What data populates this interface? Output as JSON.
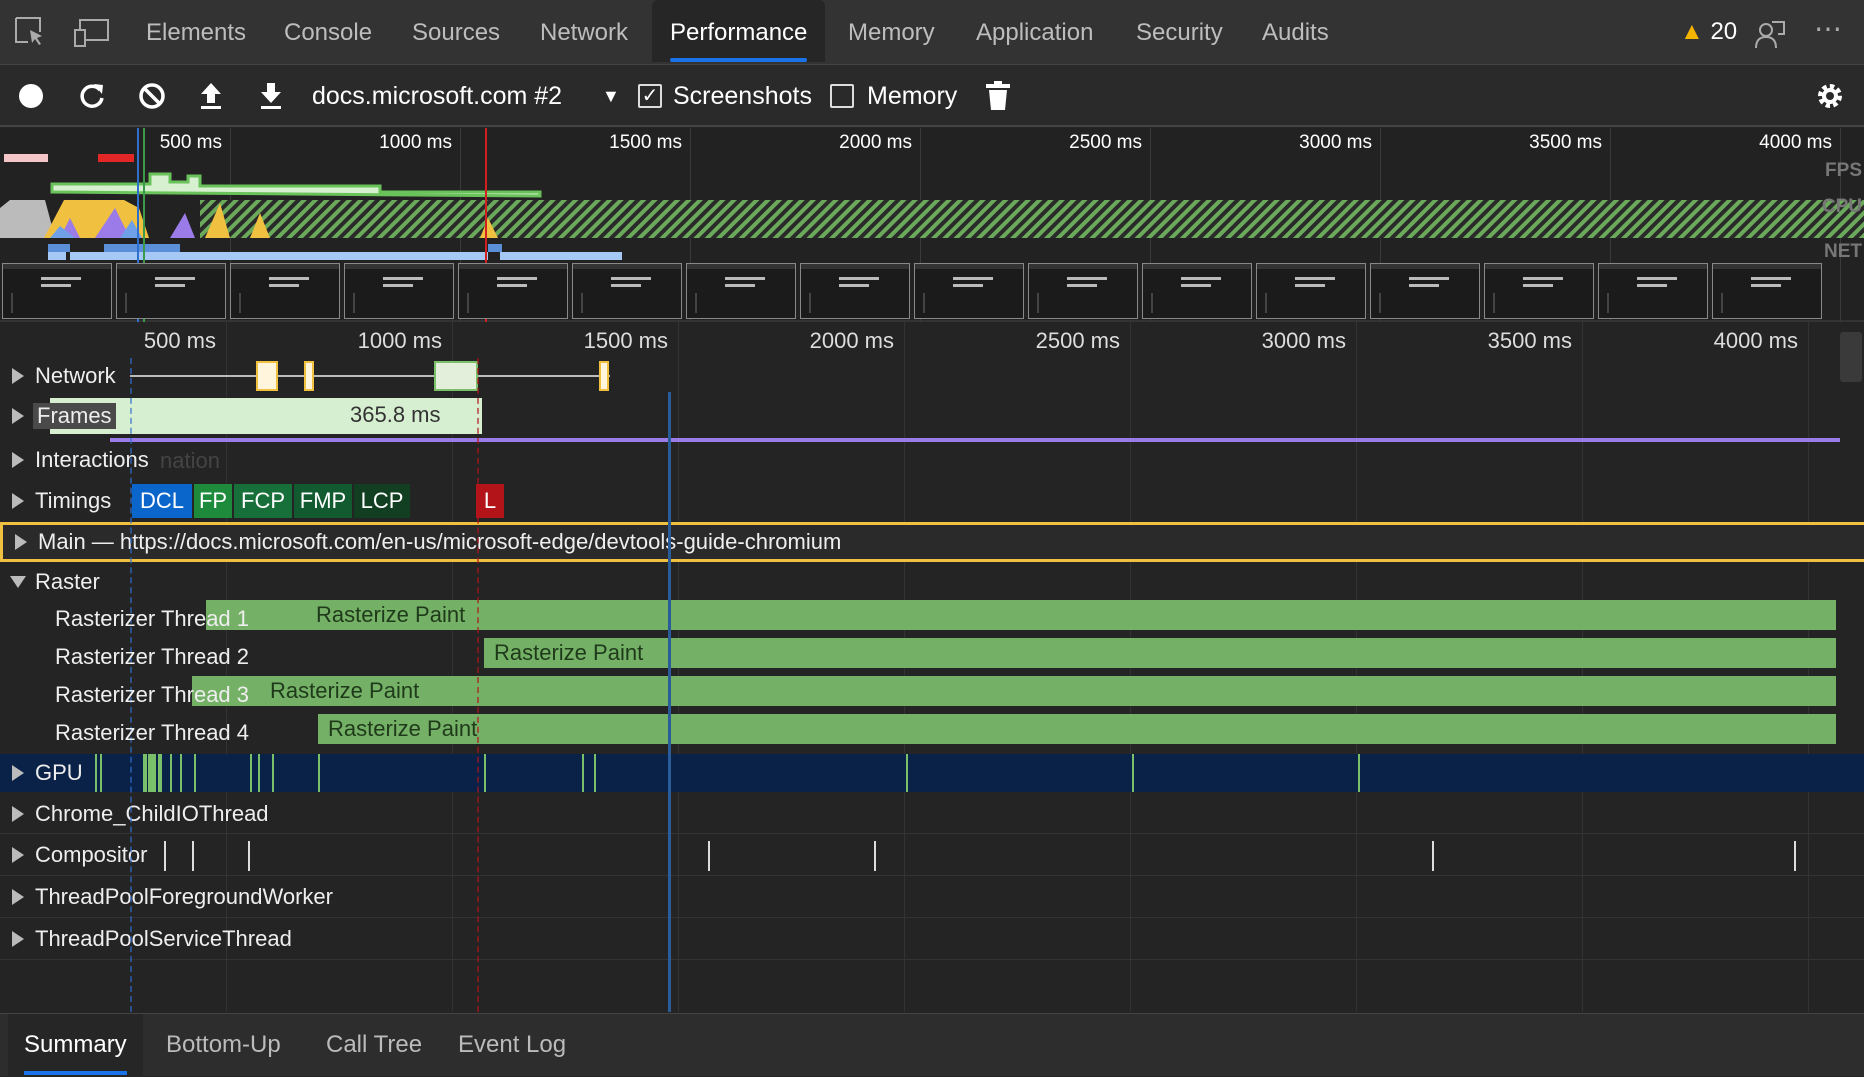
{
  "tabs": [
    "Elements",
    "Console",
    "Sources",
    "Network",
    "Performance",
    "Memory",
    "Application",
    "Security",
    "Audits"
  ],
  "active_tab": "Performance",
  "warnings": {
    "count": "20",
    "icon": "warning-icon",
    "color": "#f4b400"
  },
  "toolbar": {
    "profile_select": "docs.microsoft.com #2",
    "screenshots_label": "Screenshots",
    "screenshots_checked": true,
    "memory_label": "Memory",
    "memory_checked": false
  },
  "overview": {
    "ticks": [
      "500 ms",
      "1000 ms",
      "1500 ms",
      "2000 ms",
      "2500 ms",
      "3000 ms",
      "3500 ms",
      "4000 ms"
    ],
    "labels": {
      "fps": "FPS",
      "cpu": "CPU",
      "net": "NET"
    }
  },
  "ruler": {
    "ticks": [
      "500 ms",
      "1000 ms",
      "1500 ms",
      "2000 ms",
      "2500 ms",
      "3000 ms",
      "3500 ms",
      "4000 ms"
    ]
  },
  "tracks": {
    "network": "Network",
    "frames": "Frames",
    "frame_duration": "365.8 ms",
    "interactions": "Interactions",
    "interactions_ghost": "nation",
    "timings": "Timings",
    "timing_markers": [
      {
        "label": "DCL",
        "color": "#0b66cc"
      },
      {
        "label": "FP",
        "color": "#1e8a3c"
      },
      {
        "label": "FCP",
        "color": "#17703a"
      },
      {
        "label": "FMP",
        "color": "#125a30"
      },
      {
        "label": "LCP",
        "color": "#123f22"
      },
      {
        "label": "L",
        "color": "#b3141a"
      }
    ],
    "main": "Main — https://docs.microsoft.com/en-us/microsoft-edge/devtools-guide-chromium",
    "raster": "Raster",
    "rasterizers": [
      {
        "name": "Rasterizer Thread 1",
        "event": "Rasterize Paint"
      },
      {
        "name": "Rasterizer Thread 2",
        "event": "Rasterize Paint"
      },
      {
        "name": "Rasterizer Thread 3",
        "event": "Rasterize Paint"
      },
      {
        "name": "Rasterizer Thread 4",
        "event": "Rasterize Paint"
      }
    ],
    "gpu": "GPU",
    "chrome_io": "Chrome_ChildIOThread",
    "compositor": "Compositor",
    "tp_foreground": "ThreadPoolForegroundWorker",
    "tp_service": "ThreadPoolServiceThread"
  },
  "bottom_tabs": [
    "Summary",
    "Bottom-Up",
    "Call Tree",
    "Event Log"
  ],
  "active_bottom_tab": "Summary"
}
